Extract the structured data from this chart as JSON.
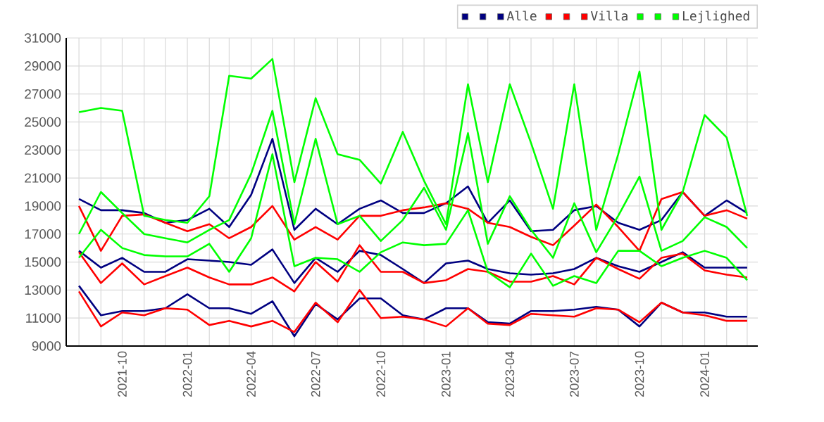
{
  "chart_data": {
    "type": "line",
    "x": [
      "2021-08",
      "2021-09",
      "2021-10",
      "2021-11",
      "2021-12",
      "2022-01",
      "2022-02",
      "2022-03",
      "2022-04",
      "2022-05",
      "2022-06",
      "2022-07",
      "2022-08",
      "2022-09",
      "2022-10",
      "2022-11",
      "2022-12",
      "2023-01",
      "2023-02",
      "2023-03",
      "2023-04",
      "2023-05",
      "2023-06",
      "2023-07",
      "2023-08",
      "2023-09",
      "2023-10",
      "2023-11",
      "2023-12",
      "2024-01",
      "2024-02",
      "2024-03"
    ],
    "series": [
      {
        "color": "#000080",
        "values": [
          19500,
          18700,
          18700,
          18500,
          17800,
          18000,
          18800,
          17500,
          19800,
          23800,
          17300,
          18800,
          17700,
          18800,
          19400,
          18500,
          18500,
          19200,
          20400,
          17800,
          19400,
          17200,
          17300,
          18700,
          19000,
          17800,
          17300,
          18000,
          20000,
          18300,
          19400,
          18500
        ]
      },
      {
        "color": "#000080",
        "values": [
          15800,
          14600,
          15300,
          14300,
          14300,
          15200,
          15100,
          15000,
          14800,
          15900,
          13500,
          15300,
          14300,
          15800,
          15500,
          14500,
          13500,
          14900,
          15100,
          14500,
          14200,
          14100,
          14200,
          14500,
          15300,
          14700,
          14300,
          15000,
          15700,
          14600,
          14600,
          14600
        ]
      },
      {
        "name": "Alle",
        "color": "#000080",
        "values": [
          13300,
          11200,
          11500,
          11500,
          11700,
          12700,
          11700,
          11700,
          11300,
          12200,
          9700,
          12000,
          10900,
          12400,
          12400,
          11200,
          10900,
          11700,
          11700,
          10700,
          10600,
          11500,
          11500,
          11600,
          11800,
          11600,
          10400,
          12100,
          11400,
          11400,
          11100,
          11100
        ]
      },
      {
        "color": "#ff0000",
        "values": [
          19000,
          15800,
          18300,
          18400,
          17800,
          17200,
          17700,
          16700,
          17500,
          19000,
          16600,
          17500,
          16600,
          18300,
          18300,
          18700,
          18900,
          19200,
          18800,
          17800,
          17500,
          16800,
          16200,
          17600,
          19100,
          17500,
          15800,
          19500,
          20000,
          18300,
          18700,
          18100
        ]
      },
      {
        "color": "#ff0000",
        "values": [
          15700,
          13500,
          14900,
          13400,
          14000,
          14600,
          13900,
          13400,
          13400,
          13900,
          12900,
          15000,
          13600,
          16200,
          14300,
          14300,
          13500,
          13700,
          14500,
          14300,
          13600,
          13600,
          14000,
          13400,
          15300,
          14500,
          13800,
          15300,
          15600,
          14400,
          14100,
          13900
        ]
      },
      {
        "name": "Villa",
        "color": "#ff0000",
        "values": [
          12900,
          10400,
          11400,
          11200,
          11700,
          11600,
          10500,
          10800,
          10400,
          10800,
          10000,
          12100,
          10700,
          13000,
          11000,
          11100,
          10900,
          10400,
          11700,
          10600,
          10500,
          11300,
          11200,
          11100,
          11700,
          11600,
          10700,
          12100,
          11400,
          11200,
          10800,
          10800
        ]
      },
      {
        "color": "#00ff00",
        "values": [
          25700,
          26000,
          25800,
          18300,
          18000,
          17800,
          19700,
          28300,
          28100,
          29500,
          20700,
          26700,
          22700,
          22300,
          20600,
          24300,
          20800,
          17700,
          27700,
          20700,
          27700,
          23500,
          18800,
          27700,
          17300,
          22700,
          28600,
          17300,
          20000,
          25500,
          23900,
          18300
        ]
      },
      {
        "color": "#00ff00",
        "values": [
          17000,
          20000,
          18500,
          17000,
          16700,
          16400,
          17300,
          18000,
          21300,
          25800,
          17700,
          23800,
          17700,
          18300,
          16500,
          18000,
          20300,
          17300,
          24200,
          16300,
          19700,
          17300,
          15300,
          19200,
          15700,
          18300,
          21100,
          15800,
          16500,
          18200,
          17500,
          16000
        ]
      },
      {
        "name": "Lejlighed",
        "color": "#00ff00",
        "values": [
          15300,
          17300,
          16000,
          15500,
          15400,
          15400,
          16300,
          14300,
          16700,
          22700,
          14700,
          15300,
          15200,
          14300,
          15700,
          16400,
          16200,
          16300,
          18700,
          14300,
          13200,
          15600,
          13300,
          14000,
          13500,
          15800,
          15800,
          14700,
          15300,
          15800,
          15300,
          13700
        ]
      }
    ],
    "xlim": [
      "2021-07-14",
      "2024-03-16"
    ],
    "xticks": [
      {
        "value": "2021-08",
        "label": null
      },
      {
        "value": "2021-09",
        "label": null
      },
      {
        "value": "2021-10",
        "label": "2021-10"
      },
      {
        "value": "2021-11",
        "label": null
      },
      {
        "value": "2021-12",
        "label": null
      },
      {
        "value": "2022-01",
        "label": "2022-01"
      },
      {
        "value": "2022-02",
        "label": null
      },
      {
        "value": "2022-03",
        "label": null
      },
      {
        "value": "2022-04",
        "label": "2022-04"
      },
      {
        "value": "2022-05",
        "label": null
      },
      {
        "value": "2022-06",
        "label": null
      },
      {
        "value": "2022-07",
        "label": "2022-07"
      },
      {
        "value": "2022-08",
        "label": null
      },
      {
        "value": "2022-09",
        "label": null
      },
      {
        "value": "2022-10",
        "label": "2022-10"
      },
      {
        "value": "2022-11",
        "label": null
      },
      {
        "value": "2022-12",
        "label": null
      },
      {
        "value": "2023-01",
        "label": "2023-01"
      },
      {
        "value": "2023-02",
        "label": null
      },
      {
        "value": "2023-03",
        "label": null
      },
      {
        "value": "2023-04",
        "label": "2023-04"
      },
      {
        "value": "2023-05",
        "label": null
      },
      {
        "value": "2023-06",
        "label": null
      },
      {
        "value": "2023-07",
        "label": "2023-07"
      },
      {
        "value": "2023-08",
        "label": null
      },
      {
        "value": "2023-09",
        "label": null
      },
      {
        "value": "2023-10",
        "label": "2023-10"
      },
      {
        "value": "2023-11",
        "label": null
      },
      {
        "value": "2023-12",
        "label": null
      },
      {
        "value": "2024-01",
        "label": "2024-01"
      },
      {
        "value": "2024-02",
        "label": null
      },
      {
        "value": "2024-03",
        "label": null
      }
    ],
    "ylim": [
      9000,
      31000
    ],
    "yticks": [
      9000,
      11000,
      13000,
      15000,
      17000,
      19000,
      21000,
      23000,
      25000,
      27000,
      29000,
      31000
    ],
    "grid": true,
    "legend": "top right"
  }
}
